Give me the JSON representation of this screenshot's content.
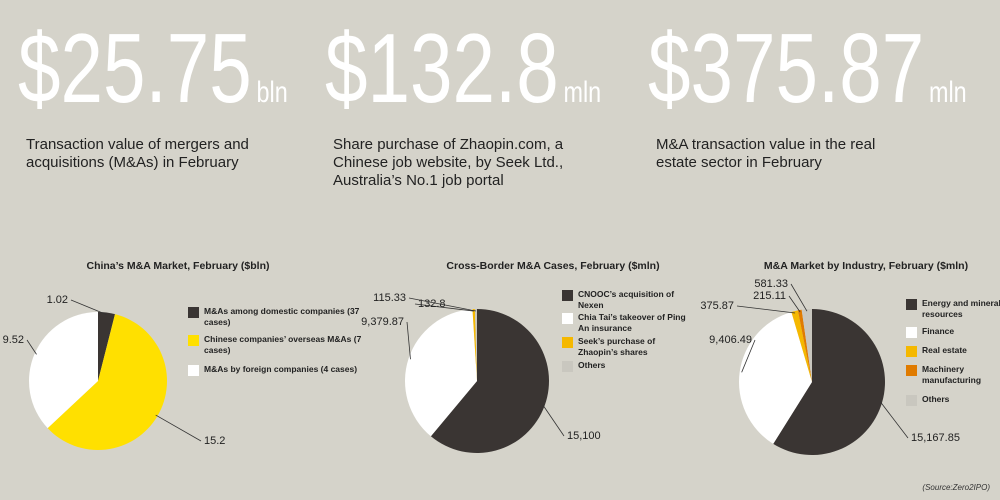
{
  "stats": [
    {
      "value": "$25.75",
      "unit": "bln",
      "description": "Transaction value of mergers and acquisitions (M&As) in February"
    },
    {
      "value": "$132.8",
      "unit": "mln",
      "description": "Share purchase of Zhaopin.com, a Chinese job website, by Seek Ltd., Australia’s No.1 job portal"
    },
    {
      "value": "$375.87",
      "unit": "mln",
      "description": "M&A transaction value in the real estate sector in February"
    }
  ],
  "chart_data": [
    {
      "type": "pie",
      "title": "China’s M&A Market, February ($bln)",
      "categories": [
        "M&As among domestic companies (37 cases)",
        "Chinese companies’ overseas M&As (7 cases)",
        "M&As by foreign companies (4 cases)"
      ],
      "values": [
        1.02,
        15.2,
        9.52
      ],
      "colors": [
        "#3a3533",
        "#ffe000",
        "#ffffff"
      ]
    },
    {
      "type": "pie",
      "title": "Cross-Border M&A Cases, February ($mln)",
      "categories": [
        "CNOOC’s acquisition of Nexen",
        "Chia Tai’s takeover of Ping An insurance",
        "Seek’s purchase of Zhaopin’s shares",
        "Others"
      ],
      "values": [
        15100,
        9379.87,
        132.8,
        115.33
      ],
      "value_labels": [
        "15,100",
        "9,379.87",
        "132.8",
        "115.33"
      ],
      "colors": [
        "#3a3533",
        "#ffffff",
        "#f5b800",
        "#c9c7bf"
      ]
    },
    {
      "type": "pie",
      "title": "M&A Market by Industry, February ($mln)",
      "categories": [
        "Energy and mineral resources",
        "Finance",
        "Real estate",
        "Machinery manufacturing",
        "Others"
      ],
      "values": [
        15167.85,
        9406.49,
        375.87,
        215.11,
        581.33
      ],
      "value_labels": [
        "15,167.85",
        "9,406.49",
        "375.87",
        "215.11",
        "581.33"
      ],
      "colors": [
        "#3a3533",
        "#ffffff",
        "#f5b800",
        "#e07b00",
        "#c9c7bf"
      ]
    }
  ],
  "source": "(Source:Zero2IPO)"
}
